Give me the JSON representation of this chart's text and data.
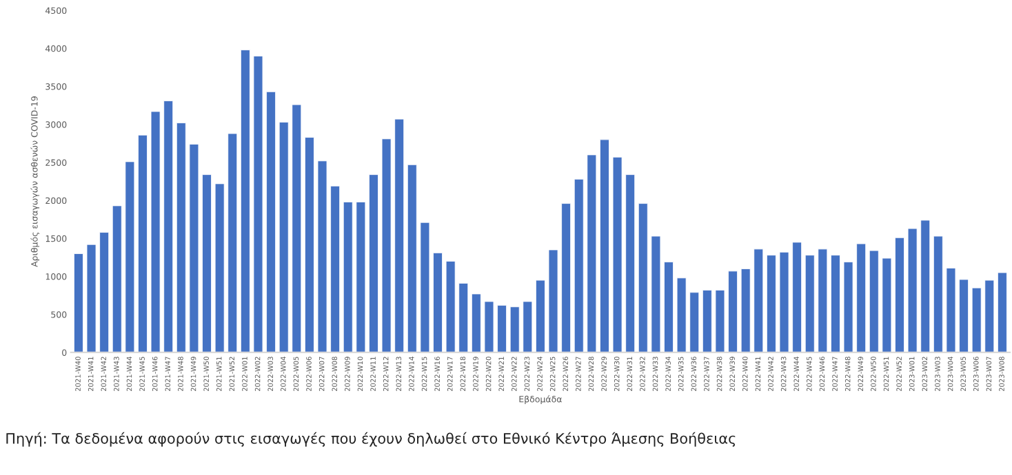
{
  "chart_data": {
    "type": "bar",
    "ylabel": "Αριθμός εισαγωγών ασθενών COVID-19",
    "xlabel": "Εβδομάδα",
    "annotations": [
      "Πηγή: Τα δεδομένα αφορούν στις εισαγωγές που έχουν δηλωθεί στο Εθνικό Κέντρο Άμεσης Βοήθειας"
    ],
    "categories": [
      "2021-W40",
      "2021-W41",
      "2021-W42",
      "2021-W43",
      "2021-W44",
      "2021-W45",
      "2021-W46",
      "2021-W47",
      "2021-W48",
      "2021-W49",
      "2021-W50",
      "2021-W51",
      "2021-W52",
      "2022-W01",
      "2022-W02",
      "2022-W03",
      "2022-W04",
      "2022-W05",
      "2022-W06",
      "2022-W07",
      "2022-W08",
      "2022-W09",
      "2022-W10",
      "2022-W11",
      "2022-W12",
      "2022-W13",
      "2022-W14",
      "2022-W15",
      "2022-W16",
      "2022-W17",
      "2022-W18",
      "2022-W19",
      "2022-W20",
      "2022-W21",
      "2022-W22",
      "2022-W23",
      "2022-W24",
      "2022-W25",
      "2022-W26",
      "2022-W27",
      "2022-W28",
      "2022-W29",
      "2022-W30",
      "2022-W31",
      "2022-W32",
      "2022-W33",
      "2022-W34",
      "2022-W35",
      "2022-W36",
      "2022-W37",
      "2022-W38",
      "2022-W39",
      "2022-W40",
      "2022-W41",
      "2022-W42",
      "2022-W43",
      "2022-W44",
      "2022-W45",
      "2022-W46",
      "2022-W47",
      "2022-W48",
      "2022-W49",
      "2022-W50",
      "2022-W51",
      "2022-W52",
      "2023-W01",
      "2023-W02",
      "2023-W03",
      "2023-W04",
      "2023-W05",
      "2023-W06",
      "2023-W07",
      "2023-W08"
    ],
    "values": [
      1300,
      1420,
      1580,
      1930,
      2510,
      2860,
      3170,
      3310,
      3020,
      2740,
      2340,
      2220,
      2880,
      3980,
      3900,
      3430,
      3030,
      3260,
      2830,
      2520,
      2190,
      1980,
      1980,
      2340,
      2810,
      3070,
      2470,
      1710,
      1310,
      1200,
      910,
      770,
      670,
      620,
      600,
      670,
      950,
      1350,
      1960,
      2280,
      2600,
      2800,
      2570,
      2340,
      1960,
      1530,
      1190,
      980,
      790,
      820,
      820,
      1070,
      1100,
      1360,
      1280,
      1320,
      1450,
      1280,
      1360,
      1280,
      1190,
      1430,
      1340,
      1240,
      1510,
      1630,
      1740,
      1530,
      1110,
      960,
      850,
      950,
      1050
    ],
    "color": "#4472c4",
    "ylim": [
      0,
      4500
    ],
    "yticks": [
      0,
      500,
      1000,
      1500,
      2000,
      2500,
      3000,
      3500,
      4000,
      4500
    ],
    "grid": false
  }
}
